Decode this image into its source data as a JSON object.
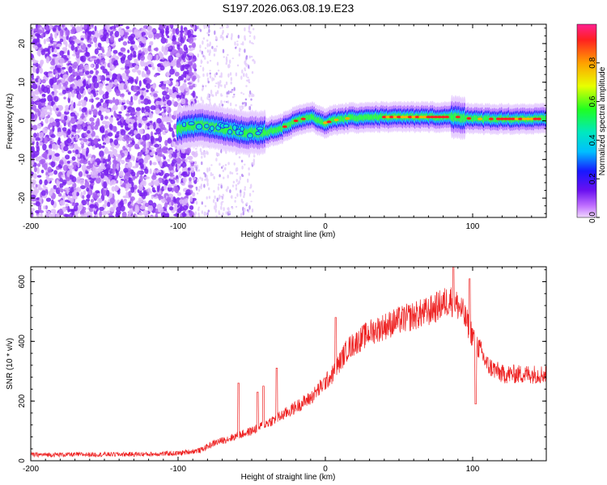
{
  "title": "S197.2026.063.08.19.E23",
  "chart_data": [
    {
      "type": "heatmap",
      "name": "spectrogram",
      "xlabel": "Height of straight line (km)",
      "ylabel": "Frequency (Hz)",
      "xlim": [
        -200,
        150
      ],
      "ylim": [
        -25,
        25
      ],
      "xticks": [
        -200,
        -100,
        0,
        100
      ],
      "yticks": [
        -20,
        -10,
        0,
        10,
        20
      ],
      "signal_ridge": [
        {
          "x": -100,
          "y": -2.0
        },
        {
          "x": -85,
          "y": -1.0
        },
        {
          "x": -70,
          "y": -2.0
        },
        {
          "x": -55,
          "y": -3.0
        },
        {
          "x": -40,
          "y": -3.0
        },
        {
          "x": -30,
          "y": -2.0
        },
        {
          "x": -20,
          "y": 0.0
        },
        {
          "x": -10,
          "y": 1.0
        },
        {
          "x": 0,
          "y": -0.5
        },
        {
          "x": 10,
          "y": 0.5
        },
        {
          "x": 30,
          "y": 1.0
        },
        {
          "x": 90,
          "y": 1.0
        },
        {
          "x": 100,
          "y": 0.5
        },
        {
          "x": 150,
          "y": 0.5
        }
      ],
      "colorbar": {
        "label": "Normalized spectral amplitude",
        "range": [
          0,
          1
        ],
        "ticks": [
          0.0,
          0.2,
          0.4,
          0.6,
          0.8
        ],
        "tick_labels": [
          "0.0",
          "0.2",
          "0.4",
          "0.6",
          "0.8"
        ]
      }
    },
    {
      "type": "line",
      "name": "snr",
      "xlabel": "Height of straight line (km)",
      "ylabel": "SNR (10 * v/v)",
      "xlim": [
        -200,
        150
      ],
      "ylim": [
        0,
        650
      ],
      "xticks": [
        -200,
        -100,
        0,
        100
      ],
      "yticks": [
        0,
        200,
        400,
        600
      ],
      "color": "#ee2222",
      "trend": [
        {
          "x": -200,
          "y": 20
        },
        {
          "x": -120,
          "y": 22
        },
        {
          "x": -100,
          "y": 25
        },
        {
          "x": -85,
          "y": 35
        },
        {
          "x": -75,
          "y": 60
        },
        {
          "x": -65,
          "y": 75
        },
        {
          "x": -50,
          "y": 100
        },
        {
          "x": -30,
          "y": 150
        },
        {
          "x": -10,
          "y": 210
        },
        {
          "x": 5,
          "y": 290
        },
        {
          "x": 15,
          "y": 375
        },
        {
          "x": 30,
          "y": 430
        },
        {
          "x": 50,
          "y": 470
        },
        {
          "x": 70,
          "y": 500
        },
        {
          "x": 85,
          "y": 540
        },
        {
          "x": 92,
          "y": 510
        },
        {
          "x": 100,
          "y": 420
        },
        {
          "x": 110,
          "y": 320
        },
        {
          "x": 120,
          "y": 290
        },
        {
          "x": 150,
          "y": 290
        }
      ],
      "spikes": [
        {
          "x": -59,
          "y": 260
        },
        {
          "x": -46,
          "y": 230
        },
        {
          "x": -42,
          "y": 250
        },
        {
          "x": -33,
          "y": 310
        },
        {
          "x": 7,
          "y": 480
        },
        {
          "x": 87,
          "y": 655
        },
        {
          "x": 98,
          "y": 610
        },
        {
          "x": 102,
          "y": 190
        }
      ]
    }
  ]
}
